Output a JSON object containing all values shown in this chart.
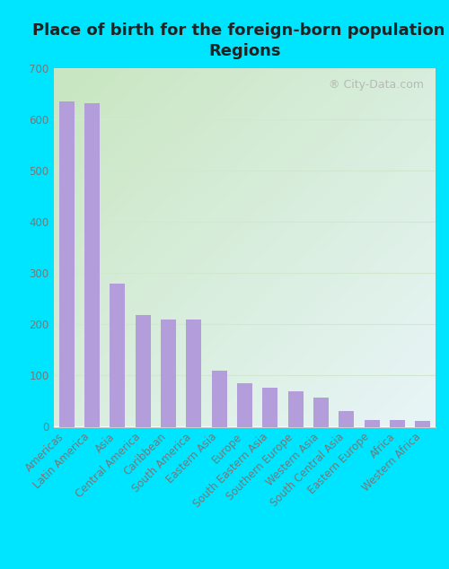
{
  "title": "Place of birth for the foreign-born population -\nRegions",
  "categories": [
    "Americas",
    "Latin America",
    "Asia",
    "Central America",
    "Caribbean",
    "South America",
    "Eastern Asia",
    "Europe",
    "South Eastern Asia",
    "Southern Europe",
    "Western Asia",
    "South Central Asia",
    "Eastern Europe",
    "Africa",
    "Western Africa"
  ],
  "values": [
    635,
    632,
    280,
    218,
    210,
    210,
    110,
    85,
    76,
    70,
    57,
    30,
    14,
    13,
    11
  ],
  "bar_color": "#b39ddb",
  "figure_bg_color": "#00e5ff",
  "plot_bg_gradient_bl": "#c8e6c0",
  "plot_bg_gradient_tr": "#e8f5f8",
  "grid_color": "#d0e8d0",
  "spine_color": "#cccccc",
  "tick_label_color": "#777777",
  "title_color": "#222222",
  "watermark_text": "City-Data.com",
  "watermark_color": "#aaaaaa",
  "ylim": [
    0,
    700
  ],
  "yticks": [
    0,
    100,
    200,
    300,
    400,
    500,
    600,
    700
  ],
  "title_fontsize": 13,
  "tick_fontsize": 8.5,
  "bar_width": 0.6
}
